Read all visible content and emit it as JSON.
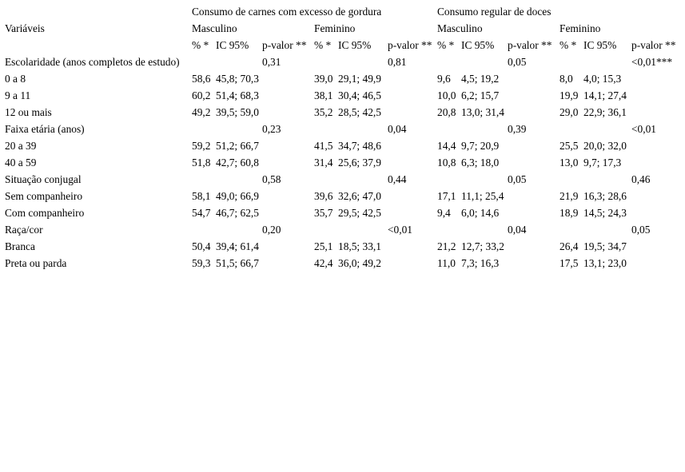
{
  "page": {
    "background": "#ffffff",
    "text_color": "#000000"
  },
  "table": {
    "variables_header": "Variáveis",
    "groups": [
      {
        "label": "Consumo de carnes com excesso de gordura"
      },
      {
        "label": "Consumo regular de doces"
      }
    ],
    "sex_headers": [
      "Masculino",
      "Feminino",
      "Masculino",
      "Feminino"
    ],
    "stat_header_pct": "% *",
    "stat_header_ic": "IC 95%",
    "stat_header_p": "p-valor **",
    "rows": [
      {
        "type": "category",
        "label": "Escolaridade (anos completos de estudo)",
        "pvalues": [
          "0,31",
          "0,81",
          "0,05",
          "<0,01***"
        ]
      },
      {
        "type": "data",
        "label": "0 a 8",
        "values": [
          {
            "pct": "58,6",
            "ic": "45,8; 70,3"
          },
          {
            "pct": "39,0",
            "ic": "29,1; 49,9"
          },
          {
            "pct": "9,6",
            "ic": "4,5; 19,2"
          },
          {
            "pct": "8,0",
            "ic": "4,0; 15,3"
          }
        ]
      },
      {
        "type": "data",
        "label": "9 a 11",
        "values": [
          {
            "pct": "60,2",
            "ic": "51,4; 68,3"
          },
          {
            "pct": "38,1",
            "ic": "30,4; 46,5"
          },
          {
            "pct": "10,0",
            "ic": "6,2; 15,7"
          },
          {
            "pct": "19,9",
            "ic": "14,1; 27,4"
          }
        ]
      },
      {
        "type": "data",
        "label": "12 ou mais",
        "values": [
          {
            "pct": "49,2",
            "ic": "39,5; 59,0"
          },
          {
            "pct": "35,2",
            "ic": "28,5; 42,5"
          },
          {
            "pct": "20,8",
            "ic": "13,0; 31,4"
          },
          {
            "pct": "29,0",
            "ic": "22,9; 36,1"
          }
        ]
      },
      {
        "type": "category",
        "label": "Faixa etária (anos)",
        "pvalues": [
          "0,23",
          "0,04",
          "0,39",
          "<0,01"
        ]
      },
      {
        "type": "data",
        "label": "20 a 39",
        "values": [
          {
            "pct": "59,2",
            "ic": "51,2; 66,7"
          },
          {
            "pct": "41,5",
            "ic": "34,7; 48,6"
          },
          {
            "pct": "14,4",
            "ic": "9,7; 20,9"
          },
          {
            "pct": "25,5",
            "ic": "20,0; 32,0"
          }
        ]
      },
      {
        "type": "data",
        "label": "40 a 59",
        "values": [
          {
            "pct": "51,8",
            "ic": "42,7; 60,8"
          },
          {
            "pct": "31,4",
            "ic": "25,6; 37,9"
          },
          {
            "pct": "10,8",
            "ic": "6,3; 18,0"
          },
          {
            "pct": "13,0",
            "ic": "9,7; 17,3"
          }
        ]
      },
      {
        "type": "category",
        "label": "Situação conjugal",
        "pvalues": [
          "0,58",
          "0,44",
          "0,05",
          "0,46"
        ]
      },
      {
        "type": "data",
        "label": "Sem companheiro",
        "values": [
          {
            "pct": "58,1",
            "ic": "49,0; 66,9"
          },
          {
            "pct": "39,6",
            "ic": "32,6; 47,0"
          },
          {
            "pct": "17,1",
            "ic": "11,1; 25,4"
          },
          {
            "pct": "21,9",
            "ic": "16,3; 28,6"
          }
        ]
      },
      {
        "type": "data",
        "label": "Com companheiro",
        "values": [
          {
            "pct": "54,7",
            "ic": "46,7; 62,5"
          },
          {
            "pct": "35,7",
            "ic": "29,5; 42,5"
          },
          {
            "pct": "9,4",
            "ic": "6,0; 14,6"
          },
          {
            "pct": "18,9",
            "ic": "14,5; 24,3"
          }
        ]
      },
      {
        "type": "category",
        "label": "Raça/cor",
        "pvalues": [
          "0,20",
          "<0,01",
          "0,04",
          "0,05"
        ]
      },
      {
        "type": "data",
        "label": "Branca",
        "values": [
          {
            "pct": "50,4",
            "ic": "39,4; 61,4"
          },
          {
            "pct": "25,1",
            "ic": "18,5; 33,1"
          },
          {
            "pct": "21,2",
            "ic": "12,7; 33,2"
          },
          {
            "pct": "26,4",
            "ic": "19,5; 34,7"
          }
        ]
      },
      {
        "type": "data",
        "label": "Preta ou parda",
        "values": [
          {
            "pct": "59,3",
            "ic": "51,5; 66,7"
          },
          {
            "pct": "42,4",
            "ic": "36,0; 49,2"
          },
          {
            "pct": "11,0",
            "ic": "7,3; 16,3"
          },
          {
            "pct": "17,5",
            "ic": "13,1; 23,0"
          }
        ]
      }
    ]
  }
}
